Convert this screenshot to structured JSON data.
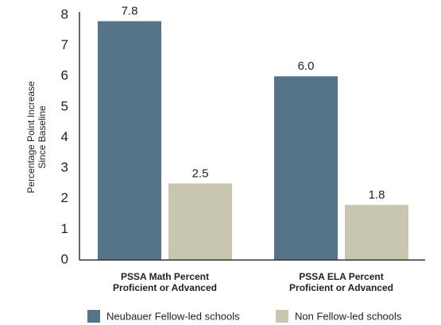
{
  "chart_data": {
    "type": "bar",
    "ylabel": [
      "Percentage Point Increase",
      "Since Baseline"
    ],
    "categories": [
      [
        "PSSA Math Percent",
        "Proficient or Advanced"
      ],
      [
        "PSSA ELA Percent",
        "Proficient or Advanced"
      ]
    ],
    "series": [
      {
        "name": "Neubauer Fellow-led schools",
        "color": "#557488",
        "values": [
          7.8,
          6.0
        ],
        "value_labels": [
          "7.8",
          "6.0"
        ]
      },
      {
        "name": "Non Fellow-led schools",
        "color": "#c9c6b0",
        "values": [
          2.5,
          1.8
        ],
        "value_labels": [
          "2.5",
          "1.8"
        ]
      }
    ],
    "ylim": [
      0,
      8
    ],
    "yticks": [
      0,
      1,
      2,
      3,
      4,
      5,
      6,
      7,
      8
    ],
    "grid": false
  }
}
